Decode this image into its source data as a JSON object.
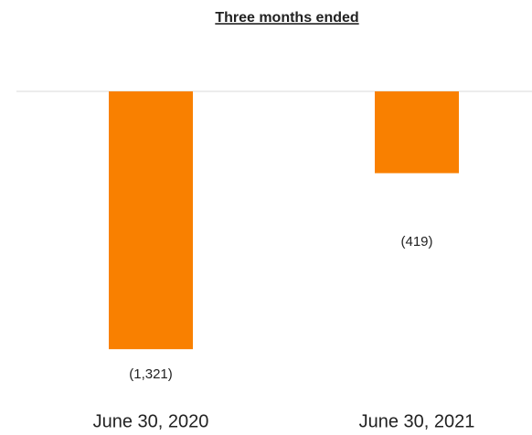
{
  "chart_data": {
    "type": "bar",
    "title": "Three months ended",
    "categories": [
      "June 30, 2020",
      "June 30, 2021"
    ],
    "values": [
      -1321,
      -419
    ],
    "value_labels": [
      "(1,321)",
      "(419)"
    ],
    "color": "#f98000",
    "ylim": [
      -1400,
      0
    ]
  }
}
